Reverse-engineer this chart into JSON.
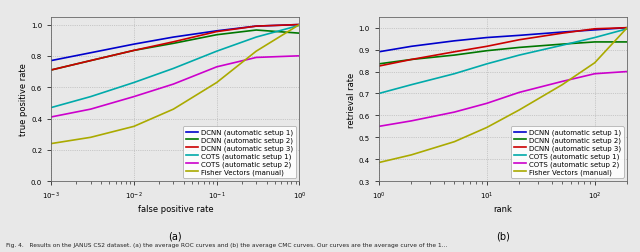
{
  "left_plot": {
    "xlabel": "false positive rate",
    "ylabel": "true positive rate",
    "subplot_label": "(a)",
    "xlim": [
      0.001,
      1.0
    ],
    "ylim": [
      0.0,
      1.05
    ],
    "yticks": [
      0.0,
      0.2,
      0.4,
      0.6,
      0.8,
      1.0
    ],
    "xticks": [
      0.001,
      0.01,
      0.1,
      1.0
    ],
    "curves": [
      {
        "label": "DCNN (automatic setup 1)",
        "color": "#0000cc",
        "x": [
          0.001,
          0.003,
          0.01,
          0.03,
          0.1,
          0.3,
          1.0
        ],
        "y": [
          0.77,
          0.82,
          0.875,
          0.92,
          0.96,
          0.99,
          1.0
        ]
      },
      {
        "label": "DCNN (automatic setup 2)",
        "color": "#007700",
        "x": [
          0.001,
          0.003,
          0.01,
          0.03,
          0.1,
          0.3,
          1.0
        ],
        "y": [
          0.71,
          0.77,
          0.835,
          0.88,
          0.935,
          0.965,
          0.945
        ]
      },
      {
        "label": "DCNN (automatic setup 3)",
        "color": "#cc0000",
        "x": [
          0.001,
          0.003,
          0.01,
          0.03,
          0.1,
          0.3,
          1.0
        ],
        "y": [
          0.71,
          0.77,
          0.835,
          0.89,
          0.955,
          0.99,
          1.0
        ]
      },
      {
        "label": "COTS (automatic setup 1)",
        "color": "#00aaaa",
        "x": [
          0.001,
          0.003,
          0.01,
          0.03,
          0.1,
          0.3,
          1.0
        ],
        "y": [
          0.47,
          0.54,
          0.63,
          0.72,
          0.83,
          0.92,
          0.995
        ]
      },
      {
        "label": "COTS (automatic setup 2)",
        "color": "#cc00cc",
        "x": [
          0.001,
          0.003,
          0.01,
          0.03,
          0.1,
          0.3,
          0.95,
          1.0
        ],
        "y": [
          0.41,
          0.46,
          0.54,
          0.62,
          0.73,
          0.79,
          0.8,
          0.8
        ]
      },
      {
        "label": "Fisher Vectors (manual)",
        "color": "#aaaa00",
        "x": [
          0.001,
          0.003,
          0.01,
          0.03,
          0.1,
          0.3,
          1.0
        ],
        "y": [
          0.24,
          0.28,
          0.35,
          0.46,
          0.63,
          0.83,
          1.0
        ]
      }
    ]
  },
  "right_plot": {
    "xlabel": "rank",
    "ylabel": "retrieval rate",
    "subplot_label": "(b)",
    "xlim": [
      1,
      200
    ],
    "ylim": [
      0.3,
      1.05
    ],
    "yticks": [
      0.3,
      0.4,
      0.5,
      0.6,
      0.7,
      0.8,
      0.9,
      1.0
    ],
    "xticks": [
      1,
      10,
      100
    ],
    "curves": [
      {
        "label": "DCNN (automatic setup 1)",
        "color": "#0000cc",
        "x": [
          1,
          2,
          5,
          10,
          20,
          50,
          100,
          200
        ],
        "y": [
          0.89,
          0.915,
          0.94,
          0.955,
          0.965,
          0.98,
          0.99,
          1.0
        ]
      },
      {
        "label": "DCNN (automatic setup 2)",
        "color": "#007700",
        "x": [
          1,
          2,
          5,
          10,
          20,
          50,
          100,
          200
        ],
        "y": [
          0.835,
          0.855,
          0.875,
          0.895,
          0.91,
          0.925,
          0.935,
          0.935
        ]
      },
      {
        "label": "DCNN (automatic setup 3)",
        "color": "#cc0000",
        "x": [
          1,
          2,
          5,
          10,
          20,
          50,
          100,
          200
        ],
        "y": [
          0.825,
          0.855,
          0.89,
          0.915,
          0.945,
          0.975,
          0.995,
          1.0
        ]
      },
      {
        "label": "COTS (automatic setup 1)",
        "color": "#00aaaa",
        "x": [
          1,
          2,
          5,
          10,
          20,
          50,
          100,
          200
        ],
        "y": [
          0.7,
          0.74,
          0.79,
          0.835,
          0.875,
          0.92,
          0.955,
          0.995
        ]
      },
      {
        "label": "COTS (automatic setup 2)",
        "color": "#cc00cc",
        "x": [
          1,
          2,
          5,
          10,
          20,
          50,
          100,
          200
        ],
        "y": [
          0.55,
          0.575,
          0.615,
          0.655,
          0.705,
          0.755,
          0.79,
          0.8
        ]
      },
      {
        "label": "Fisher Vectors (manual)",
        "color": "#aaaa00",
        "x": [
          1,
          2,
          5,
          10,
          20,
          50,
          100,
          200
        ],
        "y": [
          0.385,
          0.42,
          0.48,
          0.545,
          0.625,
          0.74,
          0.84,
          1.0
        ]
      }
    ]
  },
  "figure_label": "Fig. 4.   Results on the JANUS CS2 dataset. (a) the average ROC curves and (b) the average CMC curves. Our curves are the average curve of the 1...",
  "background_color": "#e8e8e8",
  "tick_fontsize": 5,
  "label_fontsize": 6,
  "legend_fontsize": 5,
  "line_width": 1.2
}
